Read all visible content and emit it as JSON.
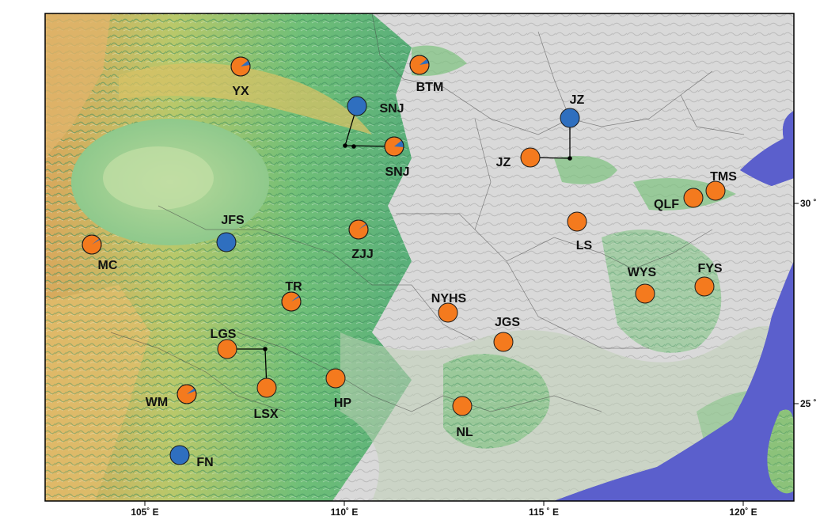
{
  "map": {
    "legend_colors": {
      "orange": "#f47a1e",
      "blue": "#2f6fbf",
      "sea": "#5b5fcc",
      "lowland": "#d9d9d9"
    },
    "x_axis": {
      "ticks": [
        "105˚ E",
        "110˚ E",
        "115 ˚ E",
        "120˚ E"
      ]
    },
    "y_axis": {
      "ticks": [
        "30 ˚",
        "25 ˚"
      ]
    },
    "sites": [
      {
        "id": "YX",
        "label": "YX",
        "color": "orange",
        "blue_fraction": 0.08
      },
      {
        "id": "BTM",
        "label": "BTM",
        "color": "orange",
        "blue_fraction": 0.08
      },
      {
        "id": "SNJ_blue",
        "label": "SNJ",
        "color": "blue",
        "blue_fraction": 1.0
      },
      {
        "id": "SNJ_orange",
        "label": "SNJ",
        "color": "orange",
        "blue_fraction": 0.12
      },
      {
        "id": "JZ_blue",
        "label": "JZ",
        "color": "blue",
        "blue_fraction": 1.0
      },
      {
        "id": "JZ_orange",
        "label": "JZ",
        "color": "orange",
        "blue_fraction": 0.0
      },
      {
        "id": "TMS",
        "label": "TMS",
        "color": "orange",
        "blue_fraction": 0.0
      },
      {
        "id": "QLF",
        "label": "QLF",
        "color": "orange",
        "blue_fraction": 0.0
      },
      {
        "id": "JFS",
        "label": "JFS",
        "color": "blue",
        "blue_fraction": 1.0
      },
      {
        "id": "ZJJ",
        "label": "ZJJ",
        "color": "orange",
        "blue_fraction": 0.02
      },
      {
        "id": "LS",
        "label": "LS",
        "color": "orange",
        "blue_fraction": 0.0
      },
      {
        "id": "MC",
        "label": "MC",
        "color": "orange",
        "blue_fraction": 0.02
      },
      {
        "id": "TR",
        "label": "TR",
        "color": "orange",
        "blue_fraction": 0.03
      },
      {
        "id": "NYHS",
        "label": "NYHS",
        "color": "orange",
        "blue_fraction": 0.0
      },
      {
        "id": "WYS",
        "label": "WYS",
        "color": "orange",
        "blue_fraction": 0.0
      },
      {
        "id": "FYS",
        "label": "FYS",
        "color": "orange",
        "blue_fraction": 0.0
      },
      {
        "id": "LGS",
        "label": "LGS",
        "color": "orange",
        "blue_fraction": 0.0
      },
      {
        "id": "JGS",
        "label": "JGS",
        "color": "orange",
        "blue_fraction": 0.0
      },
      {
        "id": "HP",
        "label": "HP",
        "color": "orange",
        "blue_fraction": 0.0
      },
      {
        "id": "WM",
        "label": "WM",
        "color": "orange",
        "blue_fraction": 0.05
      },
      {
        "id": "LSX",
        "label": "LSX",
        "color": "orange",
        "blue_fraction": 0.0
      },
      {
        "id": "NL",
        "label": "NL",
        "color": "orange",
        "blue_fraction": 0.0
      },
      {
        "id": "FN",
        "label": "FN",
        "color": "blue",
        "blue_fraction": 1.0
      }
    ]
  }
}
